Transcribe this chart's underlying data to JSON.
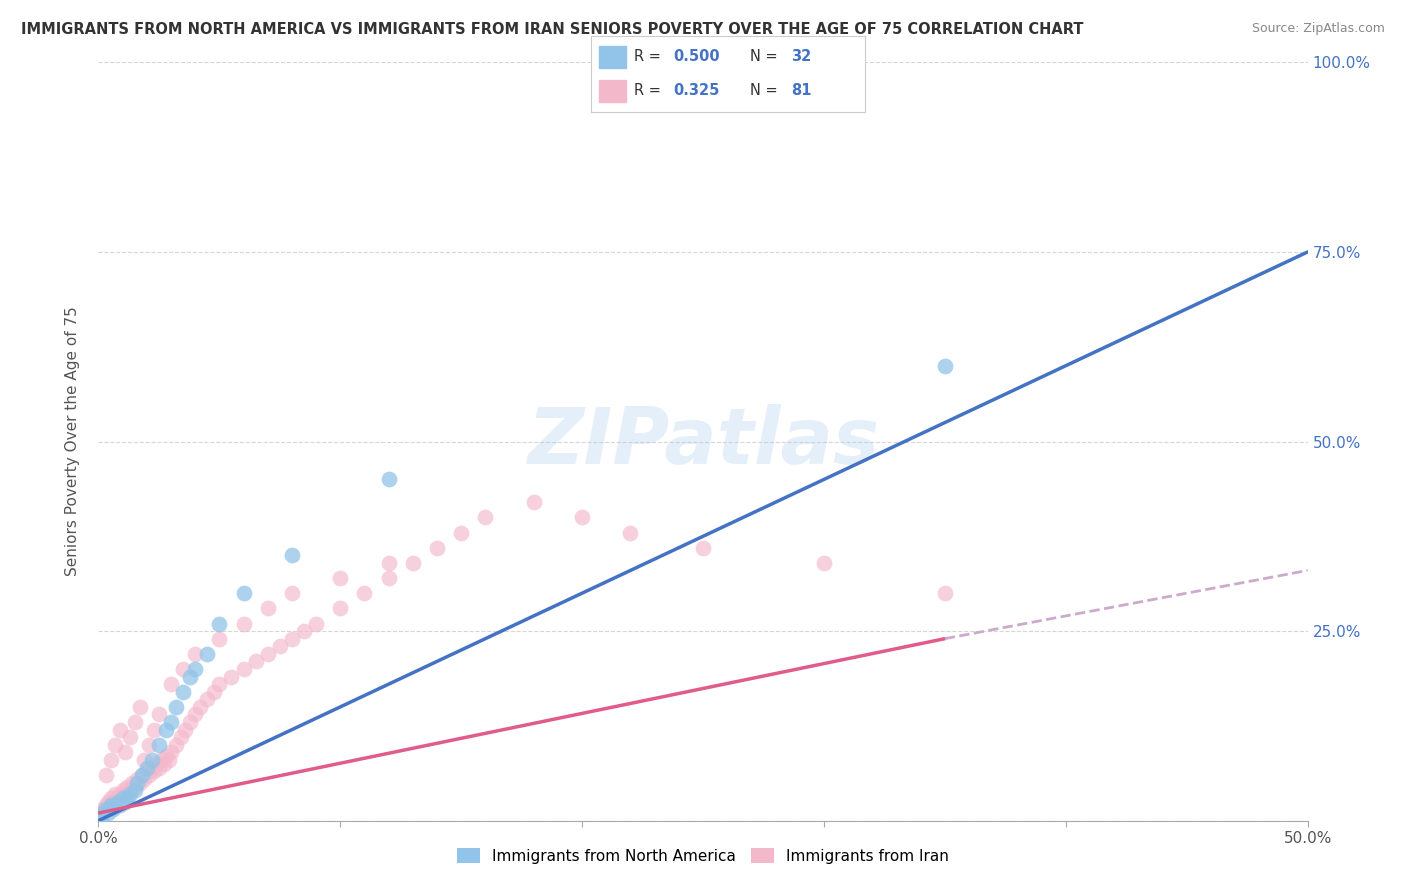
{
  "title": "IMMIGRANTS FROM NORTH AMERICA VS IMMIGRANTS FROM IRAN SENIORS POVERTY OVER THE AGE OF 75 CORRELATION CHART",
  "source": "Source: ZipAtlas.com",
  "ylabel": "Seniors Poverty Over the Age of 75",
  "r_blue": 0.5,
  "n_blue": 32,
  "r_pink": 0.325,
  "n_pink": 81,
  "xlim": [
    0.0,
    0.5
  ],
  "ylim": [
    0.0,
    1.0
  ],
  "watermark": "ZIPatlas",
  "legend_labels": [
    "Immigrants from North America",
    "Immigrants from Iran"
  ],
  "blue_color": "#91c4e8",
  "pink_color": "#f4b8cb",
  "blue_line_color": "#4472c4",
  "pink_line_color": "#e05c8a",
  "pink_dashed_color": "#ccaacc",
  "blue_scatter": {
    "x": [
      0.001,
      0.002,
      0.003,
      0.004,
      0.005,
      0.006,
      0.007,
      0.008,
      0.009,
      0.01,
      0.011,
      0.012,
      0.013,
      0.015,
      0.016,
      0.018,
      0.02,
      0.022,
      0.025,
      0.028,
      0.03,
      0.032,
      0.035,
      0.038,
      0.04,
      0.045,
      0.05,
      0.06,
      0.08,
      0.12,
      0.35,
      0.23
    ],
    "y": [
      0.005,
      0.01,
      0.015,
      0.01,
      0.02,
      0.015,
      0.02,
      0.025,
      0.02,
      0.03,
      0.025,
      0.03,
      0.035,
      0.04,
      0.05,
      0.06,
      0.07,
      0.08,
      0.1,
      0.12,
      0.13,
      0.15,
      0.17,
      0.19,
      0.2,
      0.22,
      0.26,
      0.3,
      0.35,
      0.45,
      0.6,
      0.97
    ]
  },
  "pink_scatter": {
    "x": [
      0.001,
      0.002,
      0.003,
      0.004,
      0.005,
      0.006,
      0.007,
      0.008,
      0.009,
      0.01,
      0.011,
      0.012,
      0.013,
      0.014,
      0.015,
      0.016,
      0.017,
      0.018,
      0.019,
      0.02,
      0.021,
      0.022,
      0.023,
      0.024,
      0.025,
      0.026,
      0.027,
      0.028,
      0.029,
      0.03,
      0.032,
      0.034,
      0.036,
      0.038,
      0.04,
      0.042,
      0.045,
      0.048,
      0.05,
      0.055,
      0.06,
      0.065,
      0.07,
      0.075,
      0.08,
      0.085,
      0.09,
      0.1,
      0.11,
      0.12,
      0.13,
      0.14,
      0.15,
      0.16,
      0.18,
      0.2,
      0.22,
      0.25,
      0.3,
      0.35,
      0.003,
      0.005,
      0.007,
      0.009,
      0.011,
      0.013,
      0.015,
      0.017,
      0.019,
      0.021,
      0.023,
      0.025,
      0.03,
      0.035,
      0.04,
      0.05,
      0.06,
      0.07,
      0.08,
      0.1,
      0.12
    ],
    "y": [
      0.01,
      0.015,
      0.02,
      0.025,
      0.03,
      0.025,
      0.035,
      0.03,
      0.035,
      0.04,
      0.035,
      0.045,
      0.04,
      0.05,
      0.045,
      0.055,
      0.05,
      0.06,
      0.055,
      0.065,
      0.06,
      0.07,
      0.065,
      0.075,
      0.07,
      0.08,
      0.075,
      0.085,
      0.08,
      0.09,
      0.1,
      0.11,
      0.12,
      0.13,
      0.14,
      0.15,
      0.16,
      0.17,
      0.18,
      0.19,
      0.2,
      0.21,
      0.22,
      0.23,
      0.24,
      0.25,
      0.26,
      0.28,
      0.3,
      0.32,
      0.34,
      0.36,
      0.38,
      0.4,
      0.42,
      0.4,
      0.38,
      0.36,
      0.34,
      0.3,
      0.06,
      0.08,
      0.1,
      0.12,
      0.09,
      0.11,
      0.13,
      0.15,
      0.08,
      0.1,
      0.12,
      0.14,
      0.18,
      0.2,
      0.22,
      0.24,
      0.26,
      0.28,
      0.3,
      0.32,
      0.34
    ]
  },
  "blue_line": {
    "x0": 0.0,
    "y0": 0.0,
    "x1": 0.5,
    "y1": 0.75
  },
  "pink_line_solid": {
    "x0": 0.0,
    "y0": 0.01,
    "x1": 0.35,
    "y1": 0.24
  },
  "pink_line_dashed": {
    "x0": 0.35,
    "y0": 0.24,
    "x1": 0.5,
    "y1": 0.33
  },
  "background_color": "#ffffff",
  "grid_color": "#cccccc"
}
